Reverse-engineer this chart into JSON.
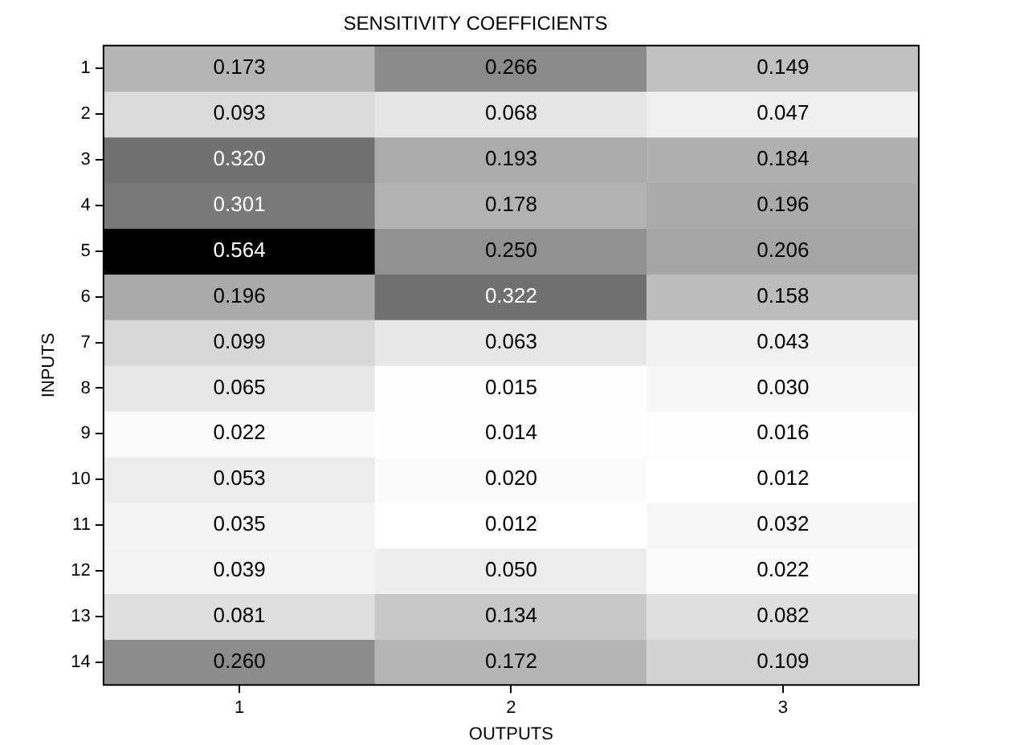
{
  "chart_data": {
    "type": "heatmap",
    "title": "SENSITIVITY COEFFICIENTS",
    "xlabel": "OUTPUTS",
    "ylabel": "INPUTS",
    "categories": [
      "1",
      "2",
      "3"
    ],
    "y_categories": [
      "1",
      "2",
      "3",
      "4",
      "5",
      "6",
      "7",
      "8",
      "9",
      "10",
      "11",
      "12",
      "13",
      "14"
    ],
    "cells": [
      [
        0.173,
        0.266,
        0.149
      ],
      [
        0.093,
        0.068,
        0.047
      ],
      [
        0.32,
        0.193,
        0.184
      ],
      [
        0.301,
        0.178,
        0.196
      ],
      [
        0.564,
        0.25,
        0.206
      ],
      [
        0.196,
        0.322,
        0.158
      ],
      [
        0.099,
        0.063,
        0.043
      ],
      [
        0.065,
        0.015,
        0.03
      ],
      [
        0.022,
        0.014,
        0.016
      ],
      [
        0.053,
        0.02,
        0.012
      ],
      [
        0.035,
        0.012,
        0.032
      ],
      [
        0.039,
        0.05,
        0.022
      ],
      [
        0.081,
        0.134,
        0.082
      ],
      [
        0.26,
        0.172,
        0.109
      ]
    ],
    "cell_labels": [
      [
        "0.173",
        "0.266",
        "0.149"
      ],
      [
        "0.093",
        "0.068",
        "0.047"
      ],
      [
        "0.320",
        "0.193",
        "0.184"
      ],
      [
        "0.301",
        "0.178",
        "0.196"
      ],
      [
        "0.564",
        "0.250",
        "0.206"
      ],
      [
        "0.196",
        "0.322",
        "0.158"
      ],
      [
        "0.099",
        "0.063",
        "0.043"
      ],
      [
        "0.065",
        "0.015",
        "0.030"
      ],
      [
        "0.022",
        "0.014",
        "0.016"
      ],
      [
        "0.053",
        "0.020",
        "0.012"
      ],
      [
        "0.035",
        "0.012",
        "0.032"
      ],
      [
        "0.039",
        "0.050",
        "0.022"
      ],
      [
        "0.081",
        "0.134",
        "0.082"
      ],
      [
        "0.260",
        "0.172",
        "0.109"
      ]
    ]
  }
}
